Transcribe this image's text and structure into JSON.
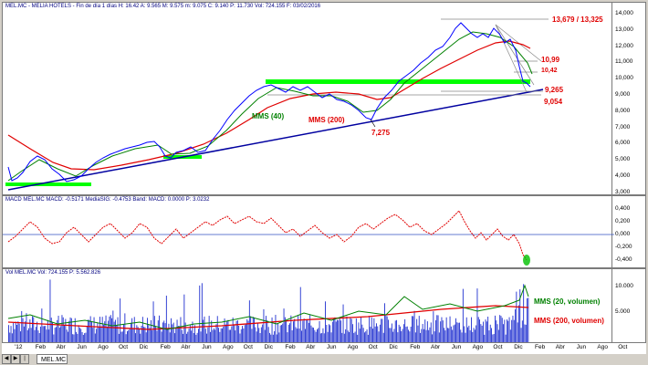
{
  "price_panel": {
    "header": "MEL.MC - MELIA HOTELS - Fin de día 1 días H: 16.42  A: 9.565  M: 9.575  m: 9.075  C: 9.140  P: 11.730  Vol: 724.155  F: 03/02/2016",
    "y_ticks": [
      "14,000",
      "13,000",
      "12,000",
      "11,000",
      "10,000",
      "9,000",
      "8,000",
      "7,000",
      "6,000",
      "5,000",
      "4,000",
      "3,000"
    ],
    "annotations": {
      "mms40": "MMS (40)",
      "mms200": "MMS (200)",
      "low": "7,275",
      "high": "13,679 / 13,325",
      "r1": "10,99",
      "r2": "10,42",
      "s1": "9,265",
      "s2": "9,054"
    }
  },
  "macd_panel": {
    "header": "MACD MEL.MC MACD: -0.5171  MediaSIG: -0.4753  Band: MACD: 0.0000  P: 3.0232",
    "y_ticks": [
      "0,400",
      "0,200",
      "0,000",
      "-0,200",
      "-0,400"
    ]
  },
  "volume_panel": {
    "header": "Vol MEL.MC Vol: 724.155  P: 5.562.826",
    "y_ticks": [
      "10.000",
      "5.000"
    ],
    "annotations": {
      "mms20v": "MMS (20, volumen)",
      "mms200v": "MMS (200, volumen)"
    }
  },
  "x_axis": {
    "labels": [
      "'12",
      "Feb",
      "Abr",
      "Jun",
      "Ago",
      "Oct",
      "Dic",
      "Feb",
      "Abr",
      "Jun",
      "Ago",
      "Oct",
      "Dic",
      "Feb",
      "Abr",
      "Jun",
      "Ago",
      "Oct",
      "Dic",
      "Feb",
      "Abr",
      "Jun",
      "Ago",
      "Oct",
      "Dic",
      "Feb",
      "Abr",
      "Jun",
      "Ago",
      "Oct"
    ]
  },
  "tab": {
    "label": "MEL.MC"
  },
  "colors": {
    "price": "#0000ff",
    "mms40": "#008000",
    "mms200": "#e00000",
    "trend": "#0000a0",
    "support": "#00ff00",
    "volume": "#0000ff",
    "macd": "#e00000"
  }
}
